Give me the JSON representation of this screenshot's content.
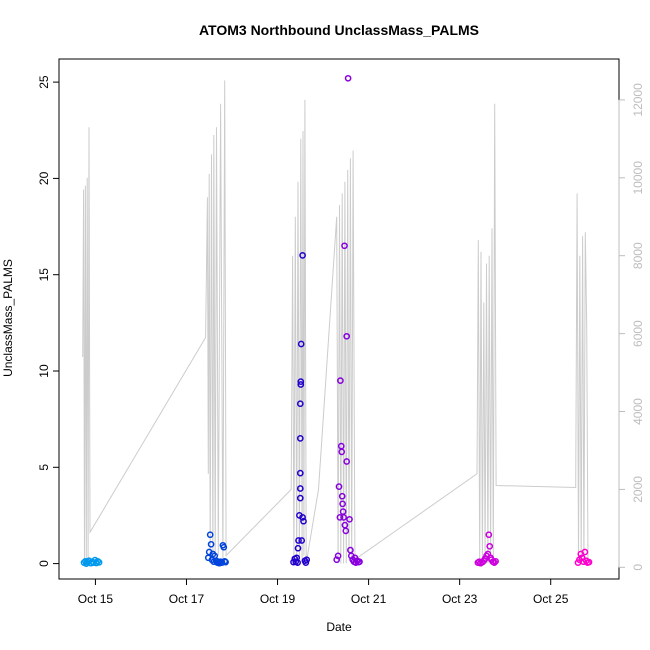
{
  "chart_data": {
    "type": "scatter",
    "title": "ATOM3 Northbound UnclassMass_PALMS",
    "xlabel": "Date",
    "ylabel": "UnclassMass_PALMS",
    "x_unit": "days (October)",
    "xlim": [
      14.2,
      26.5
    ],
    "ylim": [
      -0.8,
      26.2
    ],
    "x_ticks": [
      {
        "value": 15,
        "label": "Oct 15"
      },
      {
        "value": 17,
        "label": "Oct 17"
      },
      {
        "value": 19,
        "label": "Oct 19"
      },
      {
        "value": 21,
        "label": "Oct 21"
      },
      {
        "value": 23,
        "label": "Oct 23"
      },
      {
        "value": 25,
        "label": "Oct 25"
      }
    ],
    "y_ticks": [
      0,
      5,
      10,
      15,
      20,
      25
    ],
    "y2_ticks": [
      0,
      2000,
      4000,
      6000,
      8000,
      10000,
      12000
    ],
    "y2lim": [
      -300,
      13050
    ],
    "grid": false,
    "colors": {
      "altitude_line": "#cccccc",
      "right_axis": "#bdbdbd",
      "point_gradient": [
        "#0099ee",
        "#0044dd",
        "#2200cc",
        "#8800dd",
        "#cc00dd",
        "#ff00cc"
      ]
    },
    "points": [
      {
        "x": 14.75,
        "y": 0.05,
        "c": 0
      },
      {
        "x": 14.78,
        "y": 0.12,
        "c": 0
      },
      {
        "x": 14.8,
        "y": 0.0,
        "c": 0
      },
      {
        "x": 14.83,
        "y": 0.08,
        "c": 0
      },
      {
        "x": 14.86,
        "y": 0.15,
        "c": 0
      },
      {
        "x": 14.9,
        "y": 0.02,
        "c": 0
      },
      {
        "x": 14.93,
        "y": 0.1,
        "c": 0
      },
      {
        "x": 14.96,
        "y": 0.05,
        "c": 0
      },
      {
        "x": 14.99,
        "y": 0.18,
        "c": 0
      },
      {
        "x": 15.02,
        "y": 0.03,
        "c": 0
      },
      {
        "x": 15.05,
        "y": 0.12,
        "c": 0
      },
      {
        "x": 15.08,
        "y": 0.06,
        "c": 0
      },
      {
        "x": 17.48,
        "y": 0.3,
        "c": 1
      },
      {
        "x": 17.5,
        "y": 0.6,
        "c": 1
      },
      {
        "x": 17.52,
        "y": 1.5,
        "c": 1
      },
      {
        "x": 17.54,
        "y": 1.0,
        "c": 1
      },
      {
        "x": 17.56,
        "y": 0.2,
        "c": 1
      },
      {
        "x": 17.58,
        "y": 0.5,
        "c": 1
      },
      {
        "x": 17.6,
        "y": 0.1,
        "c": 1
      },
      {
        "x": 17.62,
        "y": 0.4,
        "c": 1
      },
      {
        "x": 17.65,
        "y": 0.15,
        "c": 1
      },
      {
        "x": 17.68,
        "y": 0.05,
        "c": 1
      },
      {
        "x": 17.7,
        "y": 0.1,
        "c": 1
      },
      {
        "x": 17.72,
        "y": 0.02,
        "c": 1
      },
      {
        "x": 17.75,
        "y": 0.1,
        "c": 1
      },
      {
        "x": 17.78,
        "y": 0.05,
        "c": 1
      },
      {
        "x": 17.8,
        "y": 0.95,
        "c": 1
      },
      {
        "x": 17.82,
        "y": 0.85,
        "c": 1
      },
      {
        "x": 17.84,
        "y": 0.12,
        "c": 1
      },
      {
        "x": 17.86,
        "y": 0.08,
        "c": 1
      },
      {
        "x": 19.4,
        "y": 0.1,
        "c": 2
      },
      {
        "x": 19.42,
        "y": 0.3,
        "c": 2
      },
      {
        "x": 19.44,
        "y": 0.05,
        "c": 2
      },
      {
        "x": 19.46,
        "y": 1.2,
        "c": 2
      },
      {
        "x": 19.48,
        "y": 2.5,
        "c": 2
      },
      {
        "x": 19.5,
        "y": 3.4,
        "c": 2
      },
      {
        "x": 19.5,
        "y": 3.9,
        "c": 2
      },
      {
        "x": 19.5,
        "y": 4.7,
        "c": 2
      },
      {
        "x": 19.5,
        "y": 6.5,
        "c": 2
      },
      {
        "x": 19.5,
        "y": 8.3,
        "c": 2
      },
      {
        "x": 19.51,
        "y": 9.3,
        "c": 2
      },
      {
        "x": 19.51,
        "y": 9.45,
        "c": 2
      },
      {
        "x": 19.52,
        "y": 11.4,
        "c": 2
      },
      {
        "x": 19.55,
        "y": 2.4,
        "c": 2
      },
      {
        "x": 19.55,
        "y": 16.0,
        "c": 2
      },
      {
        "x": 19.57,
        "y": 2.2,
        "c": 2
      },
      {
        "x": 19.53,
        "y": 1.2,
        "c": 2
      },
      {
        "x": 19.45,
        "y": 0.8,
        "c": 2
      },
      {
        "x": 19.6,
        "y": 0.15,
        "c": 2
      },
      {
        "x": 19.62,
        "y": 0.05,
        "c": 2
      },
      {
        "x": 19.64,
        "y": 0.2,
        "c": 2
      },
      {
        "x": 19.35,
        "y": 0.08,
        "c": 2
      },
      {
        "x": 19.38,
        "y": 0.25,
        "c": 2
      },
      {
        "x": 20.3,
        "y": 0.2,
        "c": 3
      },
      {
        "x": 20.33,
        "y": 0.4,
        "c": 3
      },
      {
        "x": 20.35,
        "y": 4.0,
        "c": 3
      },
      {
        "x": 20.37,
        "y": 2.4,
        "c": 3
      },
      {
        "x": 20.38,
        "y": 9.5,
        "c": 3
      },
      {
        "x": 20.4,
        "y": 6.1,
        "c": 3
      },
      {
        "x": 20.41,
        "y": 5.8,
        "c": 3
      },
      {
        "x": 20.42,
        "y": 3.5,
        "c": 3
      },
      {
        "x": 20.43,
        "y": 3.1,
        "c": 3
      },
      {
        "x": 20.44,
        "y": 2.7,
        "c": 3
      },
      {
        "x": 20.45,
        "y": 2.4,
        "c": 3
      },
      {
        "x": 20.47,
        "y": 16.5,
        "c": 3
      },
      {
        "x": 20.48,
        "y": 2.0,
        "c": 3
      },
      {
        "x": 20.5,
        "y": 1.7,
        "c": 3
      },
      {
        "x": 20.52,
        "y": 5.3,
        "c": 3
      },
      {
        "x": 20.52,
        "y": 11.8,
        "c": 3
      },
      {
        "x": 20.55,
        "y": 25.2,
        "c": 3
      },
      {
        "x": 20.58,
        "y": 2.3,
        "c": 3
      },
      {
        "x": 20.6,
        "y": 0.7,
        "c": 3
      },
      {
        "x": 20.62,
        "y": 0.4,
        "c": 3
      },
      {
        "x": 20.65,
        "y": 0.2,
        "c": 3
      },
      {
        "x": 20.68,
        "y": 0.1,
        "c": 3
      },
      {
        "x": 20.7,
        "y": 0.3,
        "c": 3
      },
      {
        "x": 20.72,
        "y": 0.05,
        "c": 3
      },
      {
        "x": 20.75,
        "y": 0.15,
        "c": 3
      },
      {
        "x": 20.78,
        "y": 0.08,
        "c": 3
      },
      {
        "x": 20.8,
        "y": 0.1,
        "c": 3
      },
      {
        "x": 23.4,
        "y": 0.05,
        "c": 4
      },
      {
        "x": 23.43,
        "y": 0.1,
        "c": 4
      },
      {
        "x": 23.46,
        "y": 0.02,
        "c": 4
      },
      {
        "x": 23.5,
        "y": 0.08,
        "c": 4
      },
      {
        "x": 23.53,
        "y": 0.15,
        "c": 4
      },
      {
        "x": 23.56,
        "y": 0.25,
        "c": 4
      },
      {
        "x": 23.59,
        "y": 0.4,
        "c": 4
      },
      {
        "x": 23.62,
        "y": 0.5,
        "c": 4
      },
      {
        "x": 23.64,
        "y": 1.5,
        "c": 4
      },
      {
        "x": 23.66,
        "y": 0.9,
        "c": 4
      },
      {
        "x": 23.68,
        "y": 0.3,
        "c": 4
      },
      {
        "x": 23.7,
        "y": 0.2,
        "c": 4
      },
      {
        "x": 23.73,
        "y": 0.1,
        "c": 4
      },
      {
        "x": 23.76,
        "y": 0.05,
        "c": 4
      },
      {
        "x": 23.79,
        "y": 0.12,
        "c": 4
      },
      {
        "x": 25.6,
        "y": 0.05,
        "c": 5
      },
      {
        "x": 25.63,
        "y": 0.2,
        "c": 5
      },
      {
        "x": 25.66,
        "y": 0.5,
        "c": 5
      },
      {
        "x": 25.69,
        "y": 0.3,
        "c": 5
      },
      {
        "x": 25.72,
        "y": 0.1,
        "c": 5
      },
      {
        "x": 25.75,
        "y": 0.6,
        "c": 5
      },
      {
        "x": 25.78,
        "y": 0.15,
        "c": 5
      },
      {
        "x": 25.81,
        "y": 0.05,
        "c": 5
      },
      {
        "x": 25.84,
        "y": 0.08,
        "c": 5
      }
    ],
    "altitude_path": [
      [
        14.72,
        5400
      ],
      [
        14.74,
        9700
      ],
      [
        14.76,
        100
      ],
      [
        14.78,
        9800
      ],
      [
        14.8,
        100
      ],
      [
        14.82,
        10000
      ],
      [
        14.84,
        100
      ],
      [
        14.86,
        11300
      ],
      [
        14.88,
        900
      ],
      [
        17.42,
        5900
      ],
      [
        17.46,
        9500
      ],
      [
        17.48,
        2400
      ],
      [
        17.5,
        10100
      ],
      [
        17.52,
        100
      ],
      [
        17.55,
        10600
      ],
      [
        17.58,
        100
      ],
      [
        17.6,
        11100
      ],
      [
        17.63,
        200
      ],
      [
        17.66,
        11300
      ],
      [
        17.7,
        300
      ],
      [
        17.75,
        11900
      ],
      [
        17.8,
        100
      ],
      [
        17.84,
        12500
      ],
      [
        17.87,
        300
      ],
      [
        19.3,
        2000
      ],
      [
        19.33,
        8000
      ],
      [
        19.36,
        100
      ],
      [
        19.39,
        9000
      ],
      [
        19.42,
        100
      ],
      [
        19.45,
        9900
      ],
      [
        19.48,
        200
      ],
      [
        19.51,
        11000
      ],
      [
        19.54,
        100
      ],
      [
        19.56,
        11200
      ],
      [
        19.58,
        300
      ],
      [
        19.6,
        12000
      ],
      [
        19.63,
        100
      ],
      [
        19.9,
        2000
      ],
      [
        20.3,
        9000
      ],
      [
        20.33,
        100
      ],
      [
        20.36,
        9300
      ],
      [
        20.39,
        100
      ],
      [
        20.42,
        9600
      ],
      [
        20.45,
        100
      ],
      [
        20.48,
        9900
      ],
      [
        20.51,
        100
      ],
      [
        20.54,
        10200
      ],
      [
        20.57,
        200
      ],
      [
        20.6,
        10500
      ],
      [
        20.63,
        100
      ],
      [
        20.66,
        10700
      ],
      [
        20.7,
        200
      ],
      [
        23.38,
        2400
      ],
      [
        23.41,
        8400
      ],
      [
        23.44,
        100
      ],
      [
        23.47,
        8100
      ],
      [
        23.5,
        100
      ],
      [
        23.53,
        6800
      ],
      [
        23.56,
        200
      ],
      [
        23.59,
        7800
      ],
      [
        23.62,
        100
      ],
      [
        23.65,
        8000
      ],
      [
        23.68,
        300
      ],
      [
        23.71,
        8700
      ],
      [
        23.74,
        100
      ],
      [
        23.77,
        11900
      ],
      [
        23.8,
        2100
      ],
      [
        25.55,
        2050
      ],
      [
        25.58,
        9600
      ],
      [
        25.61,
        100
      ],
      [
        25.64,
        8000
      ],
      [
        25.67,
        200
      ],
      [
        25.7,
        8500
      ],
      [
        25.73,
        100
      ],
      [
        25.76,
        8600
      ],
      [
        25.79,
        6200
      ],
      [
        25.82,
        100
      ]
    ]
  }
}
